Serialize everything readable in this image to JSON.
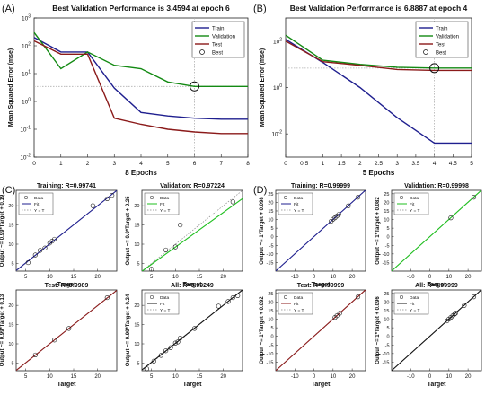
{
  "figure": {
    "panel_labels": [
      "(A)",
      "(B)",
      "(C)",
      "(D)"
    ]
  },
  "colors": {
    "train": "#1f1f8f",
    "validation": "#138a13",
    "test": "#8b1a1a",
    "best": "#b0b0b0",
    "fit_training": "#1f1f8f",
    "fit_validation": "#1fbf1f",
    "fit_test": "#8b1a1a",
    "fit_all": "#111111",
    "yt": "#888888"
  },
  "chart_data": [
    {
      "id": "A",
      "type": "line",
      "title": "Best Validation Performance is 3.4594 at epoch 6",
      "xlabel": "8 Epochs",
      "ylabel": "Mean Squared Error  (mse)",
      "yscale": "log",
      "xlim": [
        0,
        8
      ],
      "ylim": [
        0.01,
        1000
      ],
      "xticks": [
        "0",
        "1",
        "2",
        "3",
        "4",
        "5",
        "6",
        "7",
        "8"
      ],
      "yticks": [
        {
          "base": "10",
          "exp": "3"
        },
        {
          "base": "10",
          "exp": "2"
        },
        {
          "base": "10",
          "exp": "1"
        },
        {
          "base": "10",
          "exp": "0"
        },
        {
          "base": "10",
          "exp": "-1"
        },
        {
          "base": "10",
          "exp": "-2"
        }
      ],
      "legend": [
        "Train",
        "Validation",
        "Test",
        "Best"
      ],
      "legend_position": "top-right",
      "x": [
        0,
        1,
        2,
        3,
        4,
        5,
        6,
        7,
        8
      ],
      "series": [
        {
          "name": "Train",
          "values": [
            200,
            60,
            60,
            3.0,
            0.4,
            0.3,
            0.25,
            0.23,
            0.23
          ]
        },
        {
          "name": "Validation",
          "values": [
            300,
            15,
            60,
            20,
            15,
            5.0,
            3.46,
            3.46,
            3.46
          ]
        },
        {
          "name": "Test",
          "values": [
            150,
            50,
            50,
            0.25,
            0.15,
            0.1,
            0.08,
            0.07,
            0.07
          ]
        }
      ],
      "best": {
        "x": 6,
        "y": 3.4594
      }
    },
    {
      "id": "B",
      "type": "line",
      "title": "Best Validation Performance is 6.8887 at epoch 4",
      "xlabel": "5 Epochs",
      "ylabel": "Mean Squared Error  (mse)",
      "yscale": "log",
      "xlim": [
        0,
        5
      ],
      "ylim": [
        0.001,
        1000
      ],
      "xticks": [
        "0",
        "0.5",
        "1",
        "1.5",
        "2",
        "2.5",
        "3",
        "3.5",
        "4",
        "4.5",
        "5"
      ],
      "yticks": [
        {
          "base": "10",
          "exp": "2"
        },
        {
          "base": "10",
          "exp": "0"
        },
        {
          "base": "10",
          "exp": "-2"
        }
      ],
      "legend": [
        "Train",
        "Validation",
        "Test",
        "Best"
      ],
      "legend_position": "top-right",
      "x": [
        0,
        1,
        2,
        3,
        4,
        5
      ],
      "series": [
        {
          "name": "Train",
          "values": [
            120,
            12,
            1.0,
            0.05,
            0.004,
            0.004
          ]
        },
        {
          "name": "Validation",
          "values": [
            180,
            15,
            10,
            7.5,
            6.8887,
            6.9
          ]
        },
        {
          "name": "Test",
          "values": [
            100,
            13,
            9,
            6,
            5.5,
            5.5
          ]
        }
      ],
      "best": {
        "x": 4,
        "y": 6.8887
      }
    },
    {
      "id": "C1",
      "type": "scatter",
      "title": "Training: R=0.99741",
      "ylabel": "Output ~= 0.99*Target + 0.19",
      "xlabel": "Target",
      "xlim": [
        3,
        24
      ],
      "ylim": [
        3,
        24
      ],
      "xticks": [
        "5",
        "10",
        "15",
        "20"
      ],
      "yticks": [
        "5",
        "10",
        "15",
        "20"
      ],
      "legend": [
        "Data",
        "Fit",
        "Y = T"
      ],
      "points": [
        [
          5.5,
          5.2
        ],
        [
          7,
          7.2
        ],
        [
          8,
          8.4
        ],
        [
          9,
          9
        ],
        [
          10,
          10.3
        ],
        [
          10.5,
          10.8
        ],
        [
          11,
          11.3
        ],
        [
          19,
          20
        ],
        [
          22,
          21.8
        ],
        [
          23,
          22.7
        ]
      ],
      "fit": {
        "slope": 0.99,
        "intercept": 0.19
      },
      "fit_color_key": "fit_training"
    },
    {
      "id": "C2",
      "type": "scatter",
      "title": "Validation: R=0.97224",
      "ylabel": "Output ~= 0.9*Target + 0.25",
      "xlabel": "Target",
      "xlim": [
        3,
        24
      ],
      "ylim": [
        3,
        24
      ],
      "xticks": [
        "5",
        "10",
        "15",
        "20"
      ],
      "yticks": [
        "5",
        "10",
        "15",
        "20"
      ],
      "legend": [
        "Data",
        "Fit",
        "Y = T"
      ],
      "points": [
        [
          5,
          3.5
        ],
        [
          8,
          8.5
        ],
        [
          10,
          9.3
        ],
        [
          11,
          15
        ],
        [
          22,
          21
        ]
      ],
      "fit": {
        "slope": 0.9,
        "intercept": 0.25
      },
      "fit_color_key": "fit_validation"
    },
    {
      "id": "C3",
      "type": "scatter",
      "title": "Test: R=0.9989",
      "ylabel": "Output ~= 0.99*Target + 0.13",
      "xlabel": "Target",
      "xlim": [
        3,
        24
      ],
      "ylim": [
        3,
        24
      ],
      "xticks": [
        "5",
        "10",
        "15",
        "20"
      ],
      "yticks": [
        "5",
        "10",
        "15",
        "20"
      ],
      "legend": [],
      "points": [
        [
          7,
          7.1
        ],
        [
          11,
          11
        ],
        [
          14,
          14
        ],
        [
          22,
          22
        ]
      ],
      "fit": {
        "slope": 0.99,
        "intercept": 0.13
      },
      "fit_color_key": "fit_test"
    },
    {
      "id": "C4",
      "type": "scatter",
      "title": "All: R=0.99249",
      "ylabel": "Output ~= 0.99*Target + 0.24",
      "xlabel": "Target",
      "xlim": [
        3,
        24
      ],
      "ylim": [
        3,
        24
      ],
      "xticks": [
        "5",
        "10",
        "15",
        "20"
      ],
      "yticks": [
        "5",
        "10",
        "15",
        "20"
      ],
      "legend": [
        "Data",
        "Fit",
        "Y = T"
      ],
      "points": [
        [
          4,
          3.5
        ],
        [
          5.5,
          5.5
        ],
        [
          7,
          7
        ],
        [
          8,
          8.2
        ],
        [
          9,
          9
        ],
        [
          10,
          10.2
        ],
        [
          10.5,
          10.5
        ],
        [
          11,
          11.5
        ],
        [
          14,
          14
        ],
        [
          19,
          19.8
        ],
        [
          21,
          21
        ],
        [
          22,
          22
        ],
        [
          23,
          22.5
        ]
      ],
      "fit": {
        "slope": 0.99,
        "intercept": 0.24
      },
      "fit_color_key": "fit_all"
    },
    {
      "id": "D1",
      "type": "scatter",
      "title": "Training: R=0.99999",
      "ylabel": "Output ~= 1*Target + 0.098",
      "xlabel": "Target",
      "xlim": [
        -20,
        27
      ],
      "ylim": [
        -20,
        27
      ],
      "xticks": [
        "-10",
        "0",
        "10",
        "20"
      ],
      "yticks": [
        "-15",
        "-10",
        "-5",
        "0",
        "5",
        "10",
        "15",
        "20",
        "25"
      ],
      "legend": [
        "Data",
        "Fit",
        "Y = T"
      ],
      "points": [
        [
          9,
          9
        ],
        [
          10,
          10.2
        ],
        [
          11,
          11
        ],
        [
          12,
          12
        ],
        [
          13,
          13
        ],
        [
          18,
          18
        ],
        [
          23,
          23
        ]
      ],
      "fit": {
        "slope": 1,
        "intercept": 0.098
      },
      "fit_color_key": "fit_training"
    },
    {
      "id": "D2",
      "type": "scatter",
      "title": "Validation: R=0.99998",
      "ylabel": "Output ~= 1*Target + 0.082",
      "xlabel": "Target",
      "xlim": [
        -20,
        27
      ],
      "ylim": [
        -20,
        27
      ],
      "xticks": [
        "-10",
        "0",
        "10",
        "20"
      ],
      "yticks": [
        "-15",
        "-10",
        "-5",
        "0",
        "5",
        "10",
        "15",
        "20",
        "25"
      ],
      "legend": [
        "Data",
        "Fit",
        "Y = T"
      ],
      "points": [
        [
          11,
          11
        ],
        [
          23,
          23
        ]
      ],
      "fit": {
        "slope": 1,
        "intercept": 0.082
      },
      "fit_color_key": "fit_validation"
    },
    {
      "id": "D3",
      "type": "scatter",
      "title": "Test: R=0.99999",
      "ylabel": "Output ~= 1*Target + 0.092",
      "xlabel": "Target",
      "xlim": [
        -20,
        27
      ],
      "ylim": [
        -20,
        27
      ],
      "xticks": [
        "-10",
        "0",
        "10",
        "20"
      ],
      "yticks": [
        "-15",
        "-10",
        "-5",
        "0",
        "5",
        "10",
        "15",
        "20",
        "25"
      ],
      "legend": [
        "Data",
        "Fit",
        "Y = T"
      ],
      "points": [
        [
          11,
          11
        ],
        [
          12,
          12
        ],
        [
          13.5,
          13.5
        ],
        [
          23,
          23
        ]
      ],
      "fit": {
        "slope": 1,
        "intercept": 0.092
      },
      "fit_color_key": "fit_test"
    },
    {
      "id": "D4",
      "type": "scatter",
      "title": "All: R=0.99999",
      "ylabel": "Output ~= 1*Target + 0.096",
      "xlabel": "Target",
      "xlim": [
        -20,
        27
      ],
      "ylim": [
        -20,
        27
      ],
      "xticks": [
        "-10",
        "0",
        "10",
        "20"
      ],
      "yticks": [
        "-15",
        "-10",
        "-5",
        "0",
        "5",
        "10",
        "15",
        "20",
        "25"
      ],
      "legend": [
        "Data",
        "Fit",
        "Y = T"
      ],
      "points": [
        [
          9,
          9
        ],
        [
          10,
          10.1
        ],
        [
          11,
          11
        ],
        [
          12,
          12
        ],
        [
          13,
          13
        ],
        [
          13.5,
          13.5
        ],
        [
          18,
          18
        ],
        [
          23,
          23
        ]
      ],
      "fit": {
        "slope": 1,
        "intercept": 0.096
      },
      "fit_color_key": "fit_all"
    }
  ]
}
